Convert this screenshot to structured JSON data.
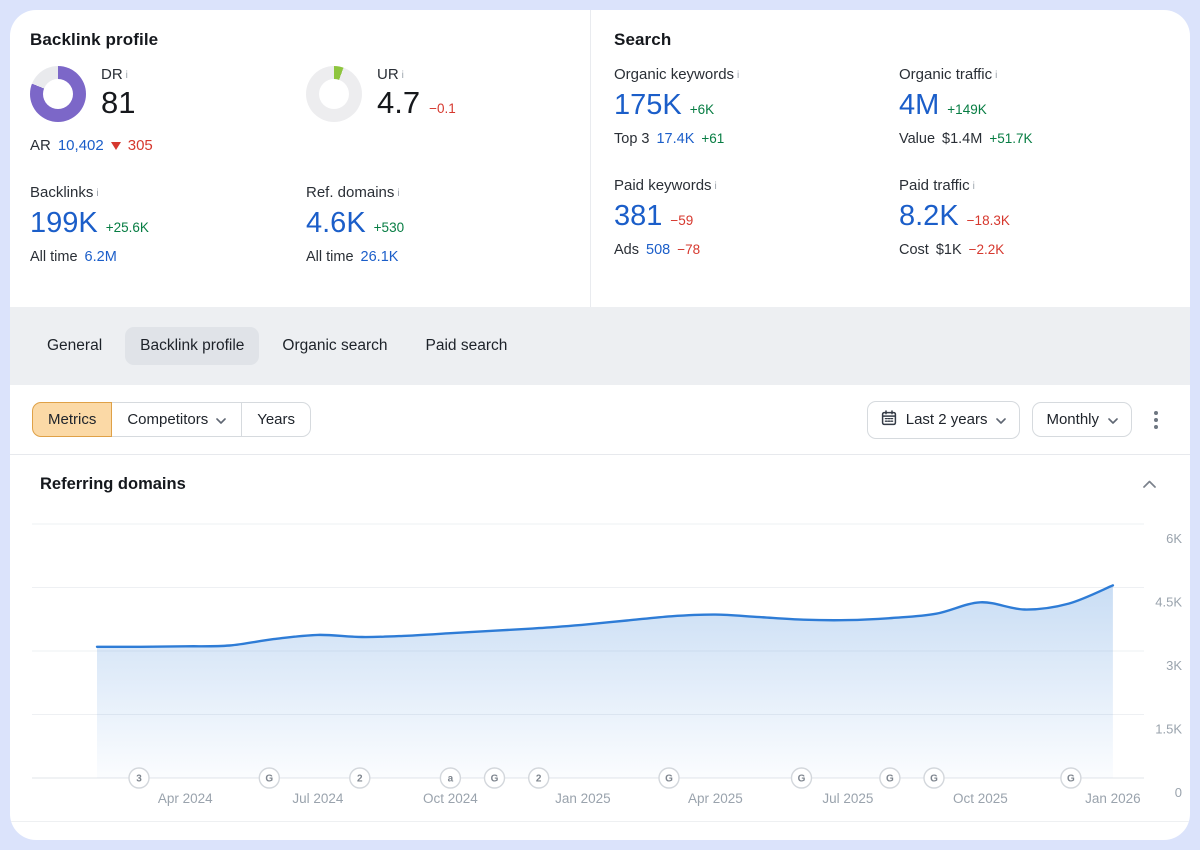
{
  "backlink_profile": {
    "title": "Backlink profile",
    "dr": {
      "label": "DR",
      "value": "81",
      "percent": 81,
      "ar_label": "AR",
      "ar_value": "10,402",
      "ar_delta": "305"
    },
    "ur": {
      "label": "UR",
      "value": "4.7",
      "delta": "−0.1",
      "percent": 5
    },
    "backlinks": {
      "label": "Backlinks",
      "value": "199K",
      "delta": "+25.6K",
      "sub_label": "All time",
      "sub_value": "6.2M"
    },
    "ref_domains": {
      "label": "Ref. domains",
      "value": "4.6K",
      "delta": "+530",
      "sub_label": "All time",
      "sub_value": "26.1K"
    }
  },
  "search": {
    "title": "Search",
    "organic_keywords": {
      "label": "Organic keywords",
      "value": "175K",
      "delta": "+6K",
      "sub_label": "Top 3",
      "sub_link": "17.4K",
      "sub_delta": "+61"
    },
    "organic_traffic": {
      "label": "Organic traffic",
      "value": "4M",
      "delta": "+149K",
      "sub_label": "Value",
      "sub_value": "$1.4M",
      "sub_delta": "+51.7K"
    },
    "paid_keywords": {
      "label": "Paid keywords",
      "value": "381",
      "delta": "−59",
      "sub_label": "Ads",
      "sub_link": "508",
      "sub_delta": "−78"
    },
    "paid_traffic": {
      "label": "Paid traffic",
      "value": "8.2K",
      "delta": "−18.3K",
      "sub_label": "Cost",
      "sub_value": "$1K",
      "sub_delta": "−2.2K"
    }
  },
  "tabs": {
    "items": [
      {
        "label": "General"
      },
      {
        "label": "Backlink profile"
      },
      {
        "label": "Organic search"
      },
      {
        "label": "Paid search"
      }
    ],
    "active_index": 1
  },
  "toolbar": {
    "metrics_label": "Metrics",
    "competitors_label": "Competitors",
    "years_label": "Years",
    "date_range_label": "Last 2 years",
    "granularity_label": "Monthly"
  },
  "section": {
    "title": "Referring domains"
  },
  "colors": {
    "accent_blue": "#1b5ec9",
    "positive_green": "#077d43",
    "negative_red": "#d6382e",
    "dr_purple": "#7c67c8",
    "ur_green": "#8ec53e",
    "tab_band_gray": "#edeff2",
    "metrics_active_bg": "#fbd9a6"
  },
  "chart_data": {
    "type": "area",
    "title": "Referring domains",
    "x": [
      "Feb 2024",
      "Mar 2024",
      "Apr 2024",
      "May 2024",
      "Jun 2024",
      "Jul 2024",
      "Aug 2024",
      "Sep 2024",
      "Oct 2024",
      "Nov 2024",
      "Dec 2024",
      "Jan 2025",
      "Feb 2025",
      "Mar 2025",
      "Apr 2025",
      "May 2025",
      "Jun 2025",
      "Jul 2025",
      "Aug 2025",
      "Sep 2025",
      "Oct 2025",
      "Nov 2025",
      "Dec 2025",
      "Jan 2026"
    ],
    "values": [
      3100,
      3100,
      3110,
      3130,
      3280,
      3380,
      3330,
      3360,
      3420,
      3480,
      3540,
      3620,
      3720,
      3820,
      3860,
      3800,
      3740,
      3730,
      3780,
      3880,
      4150,
      3980,
      4120,
      4550
    ],
    "ylim": [
      0,
      6000
    ],
    "yticks": [
      {
        "label": "6K",
        "value": 6000
      },
      {
        "label": "4.5K",
        "value": 4500
      },
      {
        "label": "3K",
        "value": 3000
      },
      {
        "label": "1.5K",
        "value": 1500
      },
      {
        "label": "0",
        "value": 0
      }
    ],
    "xticks": [
      {
        "label": "Apr 2024",
        "index": 2
      },
      {
        "label": "Jul 2024",
        "index": 5
      },
      {
        "label": "Oct 2024",
        "index": 8
      },
      {
        "label": "Jan 2025",
        "index": 11
      },
      {
        "label": "Apr 2025",
        "index": 14
      },
      {
        "label": "Jul 2025",
        "index": 17
      },
      {
        "label": "Oct 2025",
        "index": 20
      },
      {
        "label": "Jan 2026",
        "index": 23
      }
    ],
    "event_markers": [
      {
        "label": "3",
        "pos": 0.95
      },
      {
        "label": "G",
        "pos": 3.9
      },
      {
        "label": "2",
        "pos": 5.95
      },
      {
        "label": "a",
        "pos": 8.0
      },
      {
        "label": "G",
        "pos": 9.0
      },
      {
        "label": "2",
        "pos": 10.0
      },
      {
        "label": "G",
        "pos": 12.95
      },
      {
        "label": "G",
        "pos": 15.95
      },
      {
        "label": "G",
        "pos": 17.95
      },
      {
        "label": "G",
        "pos": 18.95
      },
      {
        "label": "G",
        "pos": 22.05
      }
    ],
    "grid": true,
    "legend": false,
    "line_color": "#2e7cd6",
    "area_top": "rgba(46,124,214,0.26)",
    "area_bottom": "rgba(46,124,214,0.02)",
    "grid_color": "#eef0f3",
    "baseline_color": "#e1e4e9",
    "axis_text_color": "#9aa3ad",
    "marker_border": "#d3d7dc",
    "marker_text": "#7e858e"
  }
}
